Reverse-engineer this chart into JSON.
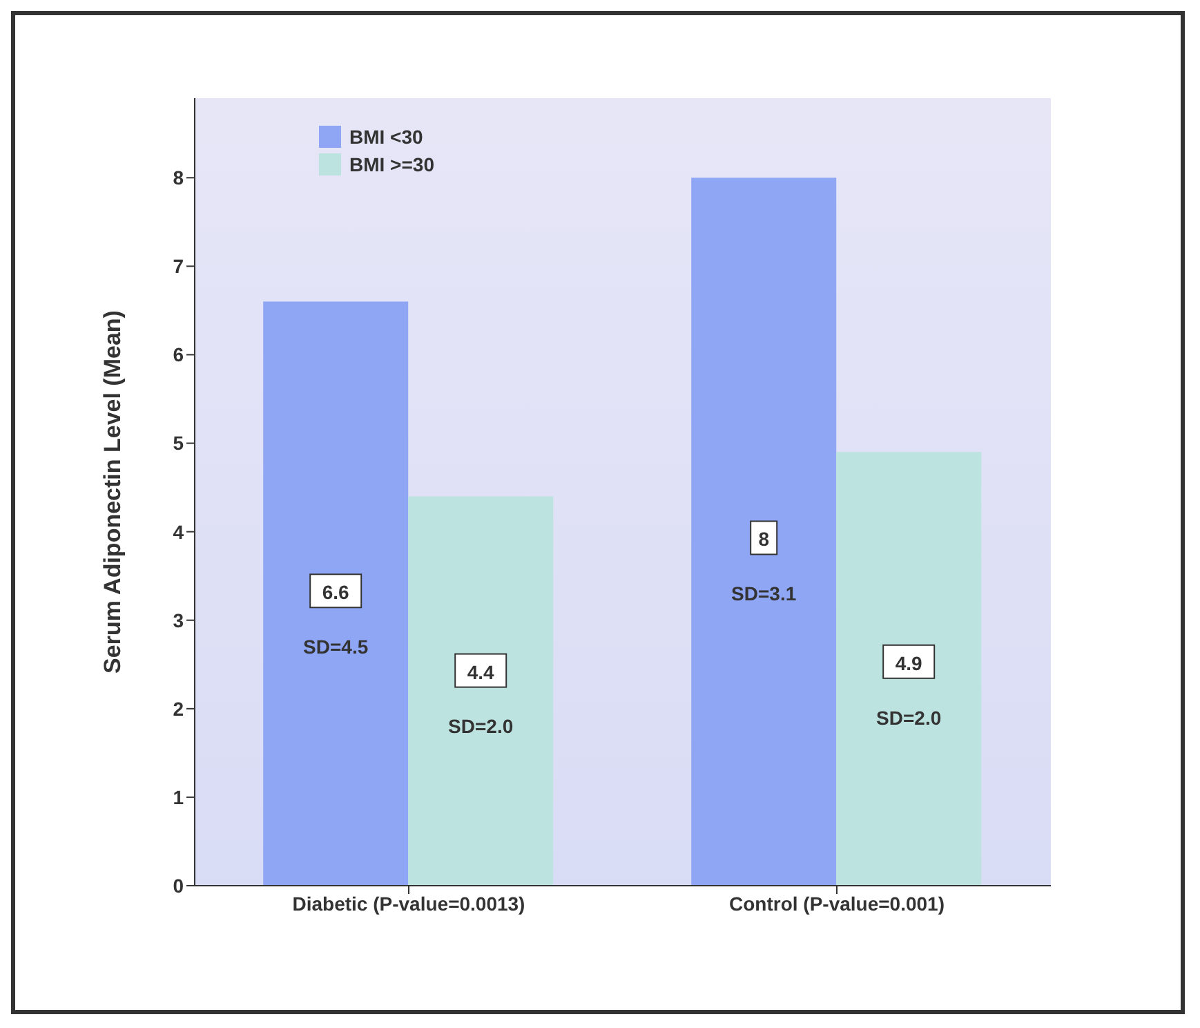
{
  "chart_data": {
    "type": "bar",
    "ylabel": "Serum Adiponectin Level (Mean)",
    "categories": [
      "Diabetic (P-value=0.0013)",
      "Control (P-value=0.001)"
    ],
    "series": [
      {
        "name": "BMI <30",
        "color": "#8fa6f5",
        "values": [
          6.6,
          8
        ]
      },
      {
        "name": "BMI >=30",
        "color": "#bde3e0",
        "values": [
          4.4,
          4.9
        ]
      }
    ],
    "ylim": [
      0,
      8.9
    ],
    "yticks": [
      0,
      1,
      2,
      3,
      4,
      5,
      6,
      7,
      8
    ],
    "grid": false,
    "legend": "top left",
    "data_labels": true,
    "annotations": [
      {
        "text": "SD=4.5",
        "x": "Diabetic (P-value=0.0013)",
        "y": 2.7
      },
      {
        "text": "SD=2.0",
        "x": "Diabetic (P-value=0.0013)",
        "y": 1.8
      },
      {
        "text": "SD=3.1",
        "x": "Control (P-value=0.001)",
        "y": 3.3
      },
      {
        "text": "SD=2.0",
        "x": "Control (P-value=0.001)",
        "y": 1.9
      }
    ]
  }
}
